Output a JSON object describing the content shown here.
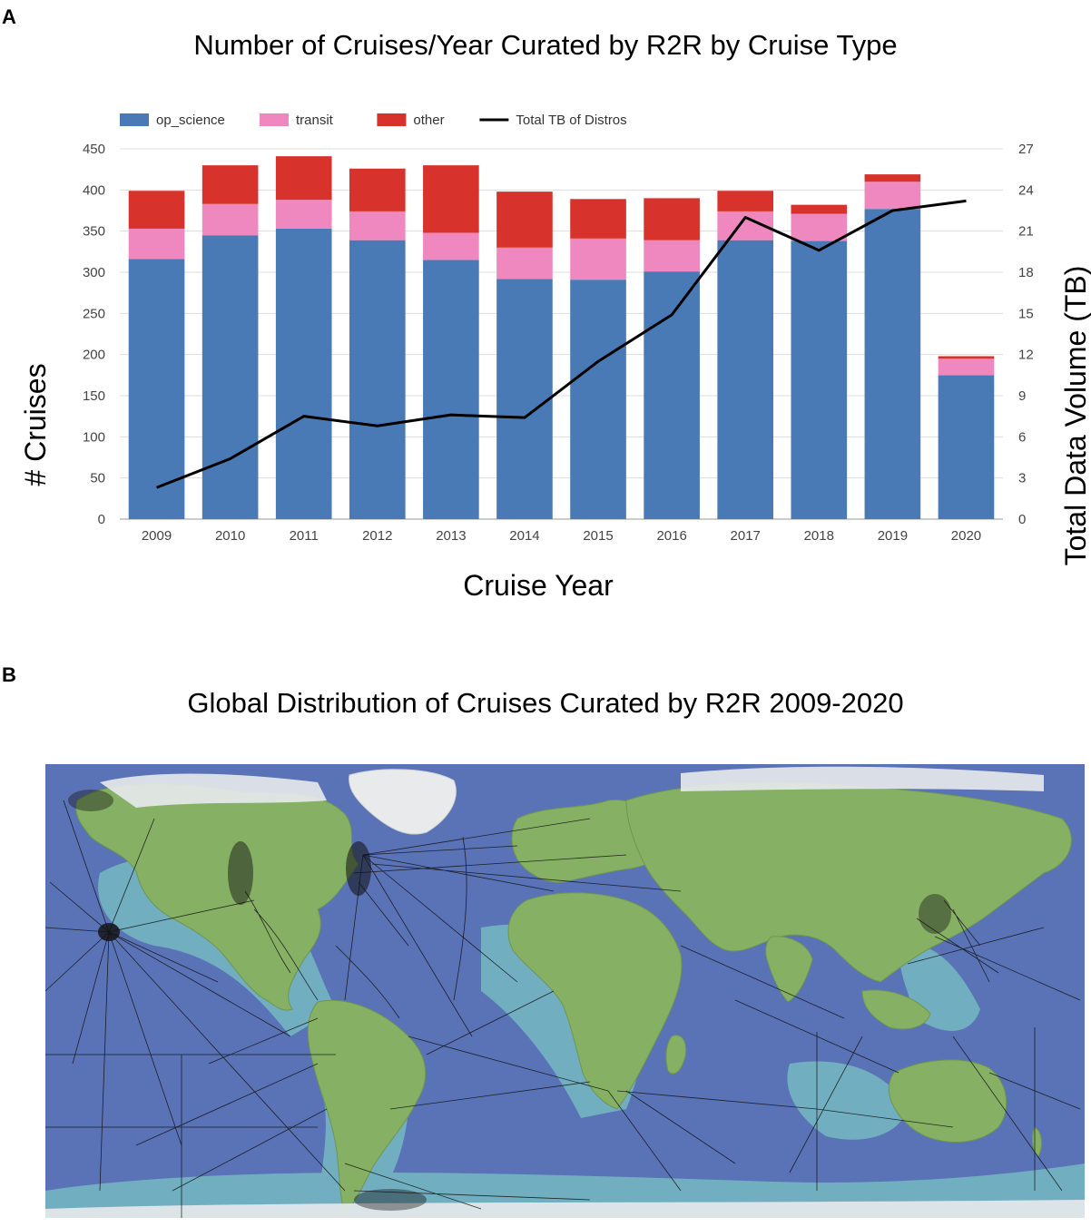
{
  "panels": {
    "a": {
      "letter": "A",
      "title": "Number of Cruises/Year Curated by R2R by Cruise Type"
    },
    "b": {
      "letter": "B",
      "title": "Global Distribution of Cruises Curated by R2R 2009-2020"
    }
  },
  "chart_data": {
    "type": "bar",
    "stacked": true,
    "title": "Number of Cruises/Year Curated by R2R by Cruise Type",
    "xlabel": "Cruise Year",
    "ylabel": "# Cruises",
    "y2label": "Total Data Volume (TB)",
    "ylim": [
      0,
      450
    ],
    "y2lim": [
      0,
      27
    ],
    "yticks": [
      "0",
      "50",
      "100",
      "150",
      "200",
      "250",
      "300",
      "350",
      "400",
      "450"
    ],
    "y2ticks": [
      "0",
      "3",
      "6",
      "9",
      "12",
      "15",
      "18",
      "21",
      "24",
      "27"
    ],
    "legend_position": "top-left",
    "grid": true,
    "categories": [
      "2009",
      "2010",
      "2011",
      "2012",
      "2013",
      "2014",
      "2015",
      "2016",
      "2017",
      "2018",
      "2019",
      "2020"
    ],
    "series": [
      {
        "name": "op_science",
        "color": "#4a7ab5",
        "values": [
          316,
          345,
          353,
          339,
          315,
          292,
          291,
          301,
          339,
          338,
          377,
          175
        ]
      },
      {
        "name": "transit",
        "color": "#ee88bf",
        "values": [
          37,
          38,
          35,
          35,
          33,
          38,
          50,
          38,
          35,
          33,
          33,
          20
        ]
      },
      {
        "name": "other",
        "color": "#d7322b",
        "values": [
          46,
          47,
          53,
          52,
          82,
          68,
          48,
          51,
          25,
          11,
          9,
          3
        ]
      }
    ],
    "line_series": {
      "name": "Total TB of Distros",
      "color": "#000000",
      "axis": "right",
      "values": [
        2.3,
        4.4,
        7.5,
        6.8,
        7.6,
        7.4,
        11.5,
        14.9,
        22.0,
        19.6,
        22.5,
        23.2
      ]
    }
  },
  "map": {
    "colors": {
      "ocean": "#5a72b6",
      "shelf": "#76b9c2",
      "land": "#86b064",
      "ice": "#e8eaec",
      "track": "#111111"
    }
  }
}
